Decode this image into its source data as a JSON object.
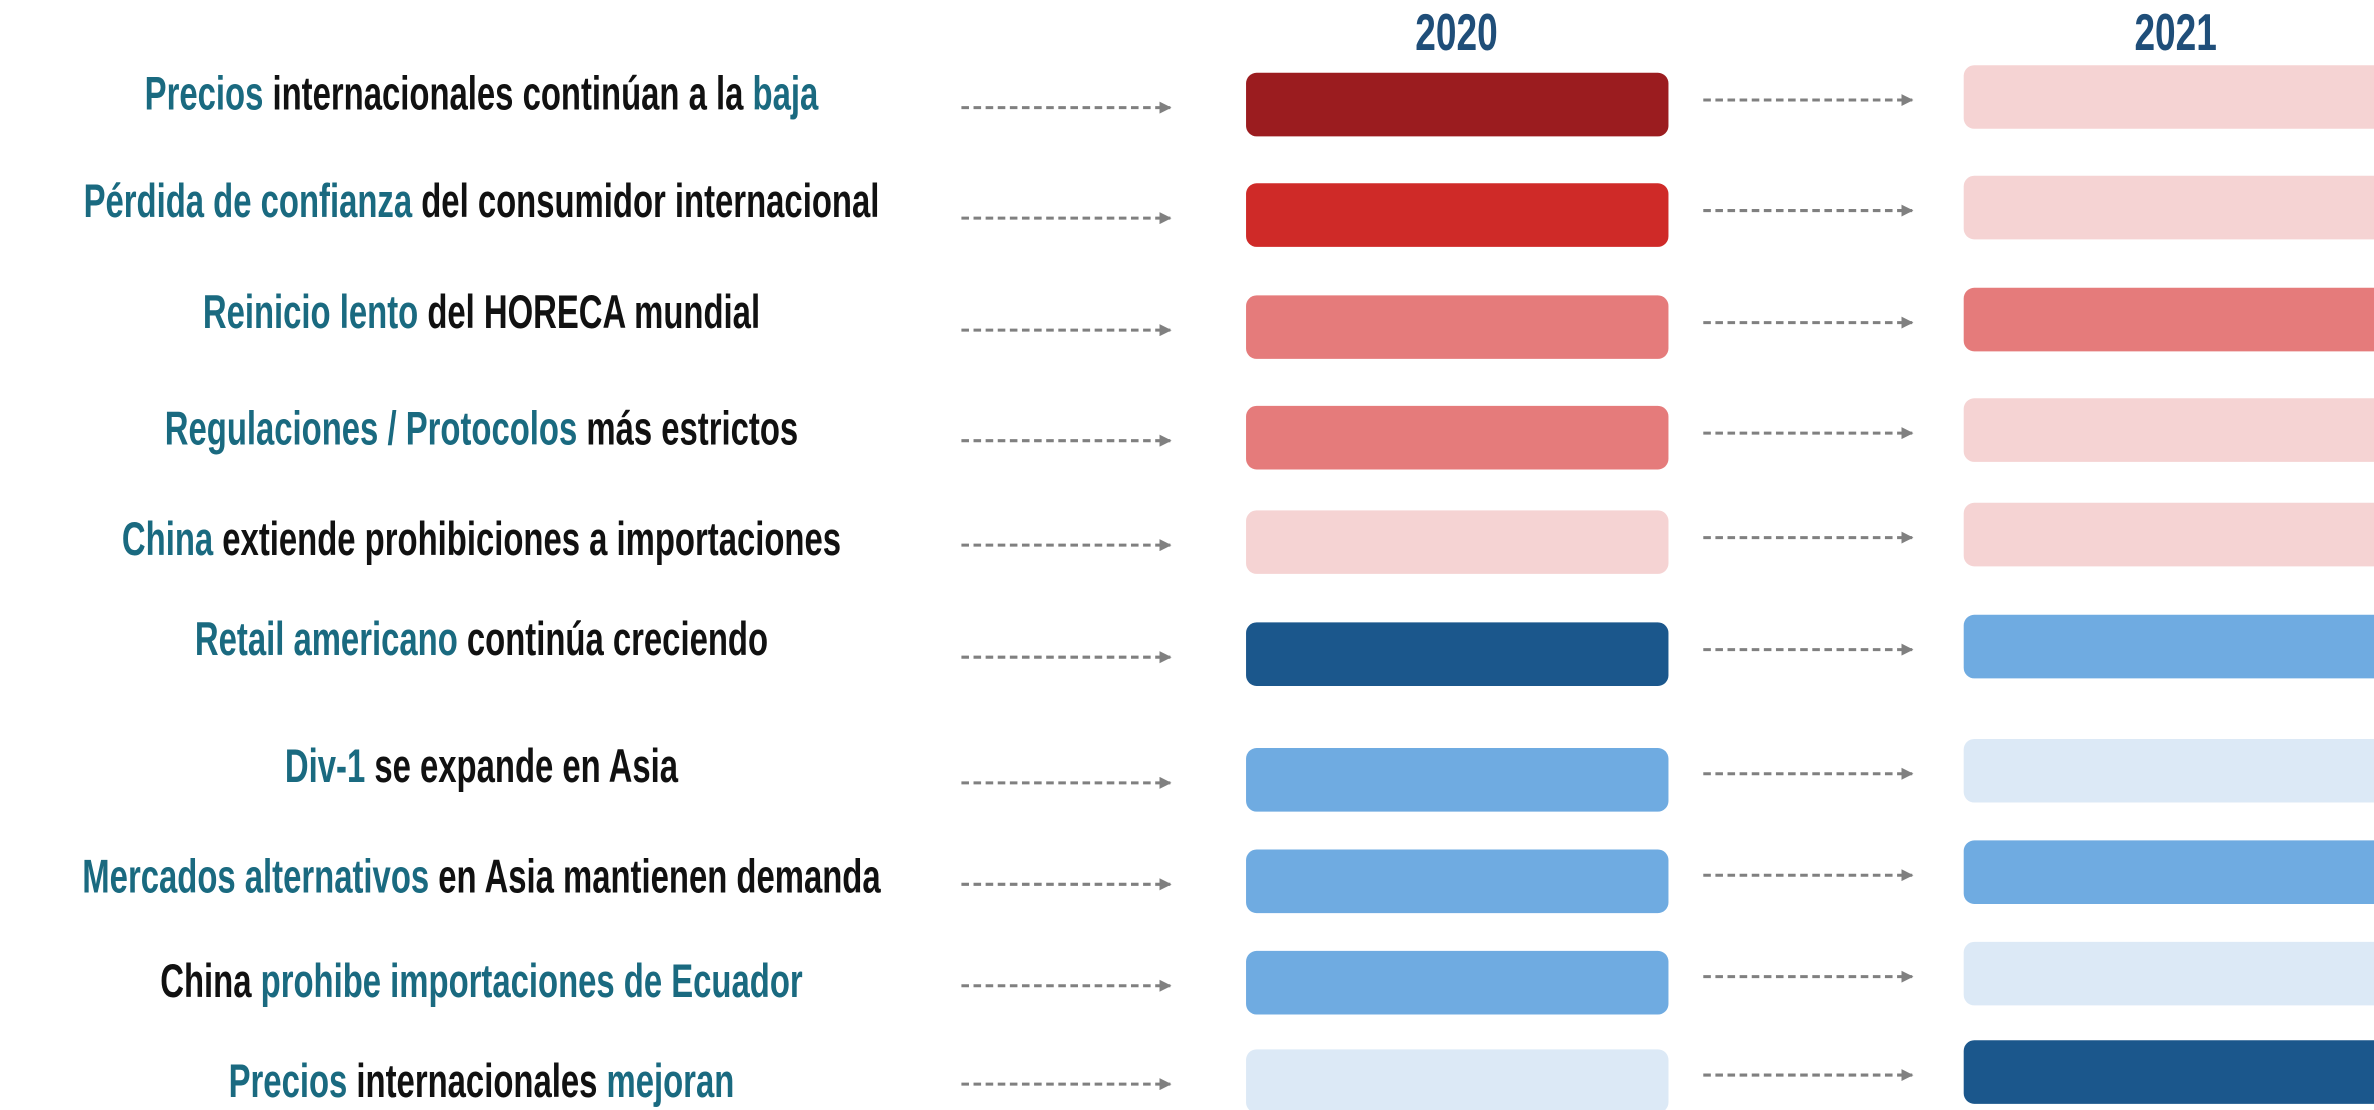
{
  "columns": [
    "2020",
    "2021"
  ],
  "rows": [
    {
      "segments": [
        {
          "text": "Precios",
          "highlight": true
        },
        {
          "text": " internacionales continúan a la ",
          "highlight": false
        },
        {
          "text": "baja",
          "highlight": true
        }
      ],
      "colors": [
        "#9b1c1f",
        "#f5d3d3"
      ]
    },
    {
      "segments": [
        {
          "text": "Pérdida de confianza",
          "highlight": true
        },
        {
          "text": " del consumidor internacional",
          "highlight": false
        }
      ],
      "colors": [
        "#cf2a28",
        "#f5d3d3"
      ]
    },
    {
      "segments": [
        {
          "text": "Reinicio lento",
          "highlight": true
        },
        {
          "text": " del HORECA mundial",
          "highlight": false
        }
      ],
      "colors": [
        "#e57b7b",
        "#e57b7b"
      ]
    },
    {
      "segments": [
        {
          "text": "Regulaciones / Protocolos",
          "highlight": true
        },
        {
          "text": " más estrictos",
          "highlight": false
        }
      ],
      "colors": [
        "#e57b7b",
        "#f5d3d3"
      ]
    },
    {
      "segments": [
        {
          "text": "China",
          "highlight": true
        },
        {
          "text": " extiende prohibiciones a importaciones",
          "highlight": false
        }
      ],
      "colors": [
        "#f5d3d3",
        "#f5d3d3"
      ]
    },
    {
      "segments": [
        {
          "text": "Retail americano",
          "highlight": true
        },
        {
          "text": " continúa creciendo",
          "highlight": false
        }
      ],
      "colors": [
        "#1b578c",
        "#6fabe1"
      ]
    },
    {
      "segments": [
        {
          "text": "Div-1",
          "highlight": true
        },
        {
          "text": " se expande en Asia",
          "highlight": false
        }
      ],
      "colors": [
        "#6fabe1",
        "#dce9f6"
      ]
    },
    {
      "segments": [
        {
          "text": "Mercados alternativos",
          "highlight": true
        },
        {
          "text": " en Asia mantienen demanda",
          "highlight": false
        }
      ],
      "colors": [
        "#6fabe1",
        "#6fabe1"
      ]
    },
    {
      "segments": [
        {
          "text": "China ",
          "highlight": false
        },
        {
          "text": "prohibe importaciones de Ecuador",
          "highlight": true
        }
      ],
      "colors": [
        "#6fabe1",
        "#dce9f6"
      ]
    },
    {
      "segments": [
        {
          "text": "Precios",
          "highlight": true
        },
        {
          "text": " internacionales ",
          "highlight": false
        },
        {
          "text": "mejoran",
          "highlight": true
        }
      ],
      "colors": [
        "#dce9f6",
        "#1b578c"
      ]
    }
  ]
}
